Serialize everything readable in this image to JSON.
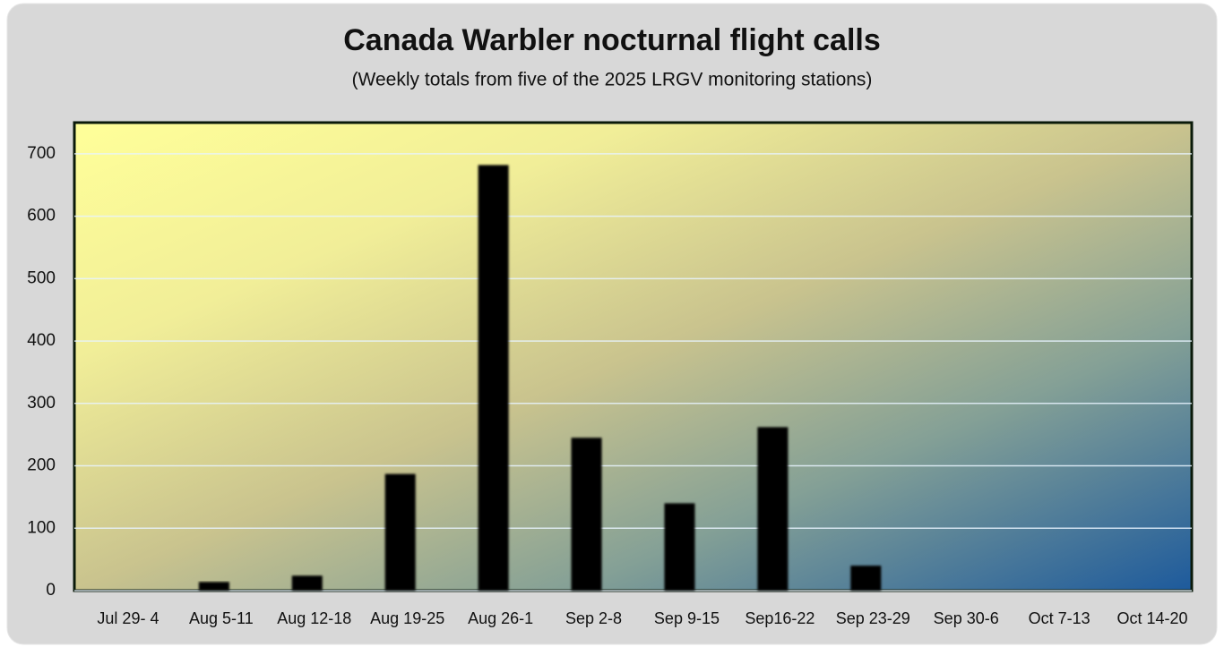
{
  "chart_data": {
    "type": "bar",
    "title": "Canada Warbler nocturnal flight calls",
    "subtitle": "(Weekly totals from five of the 2025  LRGV monitoring stations)",
    "categories": [
      "Jul 29- 4",
      "Aug 5-11",
      "Aug 12-18",
      "Aug 19-25",
      "Aug 26-1",
      "Sep 2-8",
      "Sep 9-15",
      "Sep16-22",
      "Sep 23-29",
      "Sep 30-6",
      "Oct 7-13",
      "Oct 14-20"
    ],
    "values": [
      0,
      14,
      24,
      187,
      682,
      245,
      140,
      262,
      40,
      0,
      0,
      0
    ],
    "color": "#000000",
    "ylim": [
      0,
      750
    ],
    "yticks": [
      0,
      100,
      200,
      300,
      400,
      500,
      600,
      700
    ],
    "grid": true
  }
}
